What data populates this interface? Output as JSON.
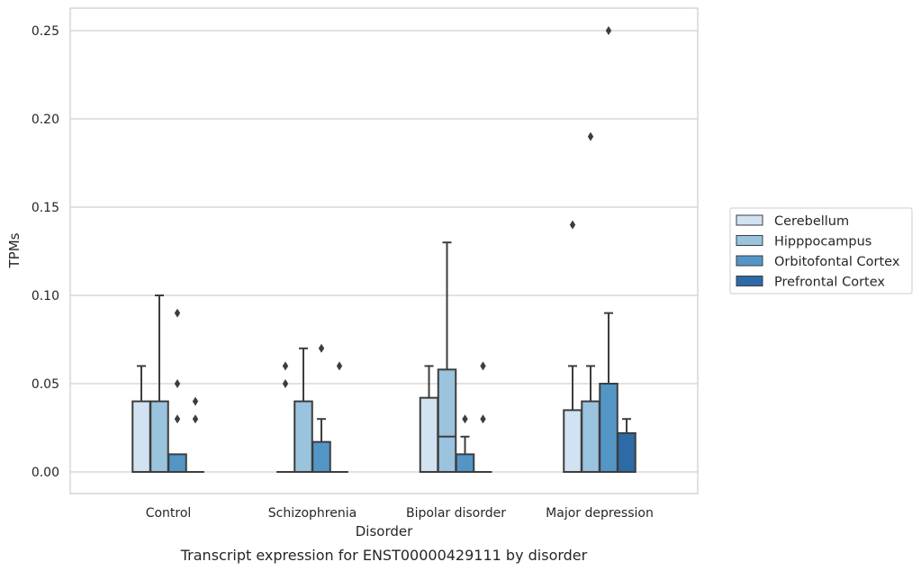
{
  "chart_data": {
    "type": "box",
    "xlabel": "Disorder",
    "ylabel": "TPMs",
    "caption": "Transcript expression for ENST00000429111 by disorder",
    "ylim": [
      -0.012,
      0.263
    ],
    "yticks": [
      0.0,
      0.05,
      0.1,
      0.15,
      0.2,
      0.25
    ],
    "ytick_labels": [
      "0.00",
      "0.05",
      "0.10",
      "0.15",
      "0.20",
      "0.25"
    ],
    "grid": "horizontal",
    "legend_position": "right",
    "categories": [
      "Control",
      "Schizophrenia",
      "Bipolar disorder",
      "Major depression"
    ],
    "series": [
      {
        "name": "Cerebellum",
        "color": "#d1e2f2",
        "boxes": [
          {
            "q1": 0.0,
            "median": 0.0,
            "q3": 0.04,
            "whislo": 0.0,
            "whishi": 0.06,
            "fliers": []
          },
          {
            "q1": 0.0,
            "median": 0.0,
            "q3": 0.0,
            "whislo": 0.0,
            "whishi": 0.0,
            "fliers": [
              0.05,
              0.06
            ]
          },
          {
            "q1": 0.0,
            "median": 0.0,
            "q3": 0.042,
            "whislo": 0.0,
            "whishi": 0.06,
            "fliers": []
          },
          {
            "q1": 0.0,
            "median": 0.0,
            "q3": 0.035,
            "whislo": 0.0,
            "whishi": 0.06,
            "fliers": [
              0.14
            ]
          }
        ]
      },
      {
        "name": "Hipppocampus",
        "color": "#9ac3dd",
        "boxes": [
          {
            "q1": 0.0,
            "median": 0.0,
            "q3": 0.04,
            "whislo": 0.0,
            "whishi": 0.1,
            "fliers": []
          },
          {
            "q1": 0.0,
            "median": 0.0,
            "q3": 0.04,
            "whislo": 0.0,
            "whishi": 0.07,
            "fliers": []
          },
          {
            "q1": 0.0,
            "median": 0.02,
            "q3": 0.058,
            "whislo": 0.0,
            "whishi": 0.13,
            "fliers": []
          },
          {
            "q1": 0.0,
            "median": 0.0,
            "q3": 0.04,
            "whislo": 0.0,
            "whishi": 0.06,
            "fliers": [
              0.19
            ]
          }
        ]
      },
      {
        "name": "Orbitofontal Cortex",
        "color": "#5396c6",
        "boxes": [
          {
            "q1": 0.0,
            "median": 0.0,
            "q3": 0.01,
            "whislo": 0.0,
            "whishi": 0.01,
            "fliers": [
              0.03,
              0.05,
              0.09
            ]
          },
          {
            "q1": 0.0,
            "median": 0.0,
            "q3": 0.017,
            "whislo": 0.0,
            "whishi": 0.03,
            "fliers": [
              0.07
            ]
          },
          {
            "q1": 0.0,
            "median": 0.0,
            "q3": 0.01,
            "whislo": 0.0,
            "whishi": 0.02,
            "fliers": [
              0.03
            ]
          },
          {
            "q1": 0.0,
            "median": 0.0,
            "q3": 0.05,
            "whislo": 0.0,
            "whishi": 0.09,
            "fliers": [
              0.25
            ]
          }
        ]
      },
      {
        "name": "Prefrontal Cortex",
        "color": "#2c6ba7",
        "boxes": [
          {
            "q1": 0.0,
            "median": 0.0,
            "q3": 0.0,
            "whislo": 0.0,
            "whishi": 0.0,
            "fliers": [
              0.03,
              0.04
            ]
          },
          {
            "q1": 0.0,
            "median": 0.0,
            "q3": 0.0,
            "whislo": 0.0,
            "whishi": 0.0,
            "fliers": [
              0.06
            ]
          },
          {
            "q1": 0.0,
            "median": 0.0,
            "q3": 0.0,
            "whislo": 0.0,
            "whishi": 0.0,
            "fliers": [
              0.03,
              0.06
            ]
          },
          {
            "q1": 0.0,
            "median": 0.0,
            "q3": 0.022,
            "whislo": 0.0,
            "whishi": 0.03,
            "fliers": []
          }
        ]
      }
    ]
  }
}
